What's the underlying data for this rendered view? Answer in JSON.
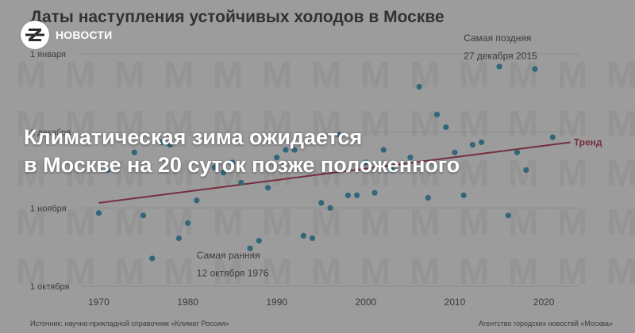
{
  "brand": {
    "name": "НОВОСТИ",
    "logo_icon": "z-letter-icon"
  },
  "headline": {
    "line1": "Климатическая зима ожидается",
    "line2": "в Москве на 20 суток позже положенного"
  },
  "chart_data": {
    "type": "scatter",
    "title": "Даты наступления устойчивых холодов в Москве",
    "x_ticks": [
      1970,
      1980,
      1990,
      2000,
      2010,
      2020
    ],
    "y_ticks": [
      {
        "day": 1,
        "label": "1 октября"
      },
      {
        "day": 32,
        "label": "1 ноября"
      },
      {
        "day": 62,
        "label": "1 декабря"
      },
      {
        "day": 93,
        "label": "1 января"
      }
    ],
    "xlim": [
      1968,
      2024
    ],
    "ylim": [
      1,
      93
    ],
    "points": [
      {
        "x": 1970,
        "y": 30
      },
      {
        "x": 1971,
        "y": 47
      },
      {
        "x": 1974,
        "y": 54
      },
      {
        "x": 1975,
        "y": 29
      },
      {
        "x": 1976,
        "y": 12
      },
      {
        "x": 1977,
        "y": 58
      },
      {
        "x": 1978,
        "y": 57
      },
      {
        "x": 1979,
        "y": 20
      },
      {
        "x": 1980,
        "y": 26
      },
      {
        "x": 1981,
        "y": 35
      },
      {
        "x": 1983,
        "y": 48
      },
      {
        "x": 1984,
        "y": 46
      },
      {
        "x": 1985,
        "y": 50
      },
      {
        "x": 1986,
        "y": 42
      },
      {
        "x": 1987,
        "y": 16
      },
      {
        "x": 1988,
        "y": 19
      },
      {
        "x": 1989,
        "y": 40
      },
      {
        "x": 1990,
        "y": 52
      },
      {
        "x": 1991,
        "y": 55
      },
      {
        "x": 1992,
        "y": 55
      },
      {
        "x": 1993,
        "y": 21
      },
      {
        "x": 1994,
        "y": 20
      },
      {
        "x": 1995,
        "y": 34
      },
      {
        "x": 1996,
        "y": 32
      },
      {
        "x": 1997,
        "y": 61
      },
      {
        "x": 1998,
        "y": 37
      },
      {
        "x": 1999,
        "y": 37
      },
      {
        "x": 2000,
        "y": 50
      },
      {
        "x": 2001,
        "y": 38
      },
      {
        "x": 2002,
        "y": 55
      },
      {
        "x": 2003,
        "y": 47
      },
      {
        "x": 2005,
        "y": 52
      },
      {
        "x": 2006,
        "y": 80
      },
      {
        "x": 2007,
        "y": 36
      },
      {
        "x": 2008,
        "y": 69
      },
      {
        "x": 2009,
        "y": 64
      },
      {
        "x": 2010,
        "y": 54
      },
      {
        "x": 2011,
        "y": 37
      },
      {
        "x": 2012,
        "y": 57
      },
      {
        "x": 2013,
        "y": 58
      },
      {
        "x": 2015,
        "y": 88
      },
      {
        "x": 2016,
        "y": 29
      },
      {
        "x": 2017,
        "y": 54
      },
      {
        "x": 2018,
        "y": 47
      },
      {
        "x": 2019,
        "y": 87
      },
      {
        "x": 2021,
        "y": 60
      }
    ],
    "trend": {
      "name": "Тренд",
      "x": [
        1970,
        2023
      ],
      "y": [
        34,
        58
      ]
    },
    "annotations": [
      {
        "text": "Самая поздняя",
        "x": 2011,
        "y": 98
      },
      {
        "text": "27 декабря 2015",
        "x": 2011,
        "y": 91
      },
      {
        "text": "Самая ранняя",
        "x": 1981,
        "y": 12
      },
      {
        "text": "12 октября 1976",
        "x": 1981,
        "y": 5
      }
    ],
    "source": "Источник: научно-прикладной справочник «Климат России»",
    "agency": "Агентство городских новостей «Москва»",
    "colors": {
      "point": "#3d8fb0",
      "trend": "#a8324a",
      "text": "#4a4a4a",
      "grid": "#d0d0d0"
    },
    "grid": true
  }
}
